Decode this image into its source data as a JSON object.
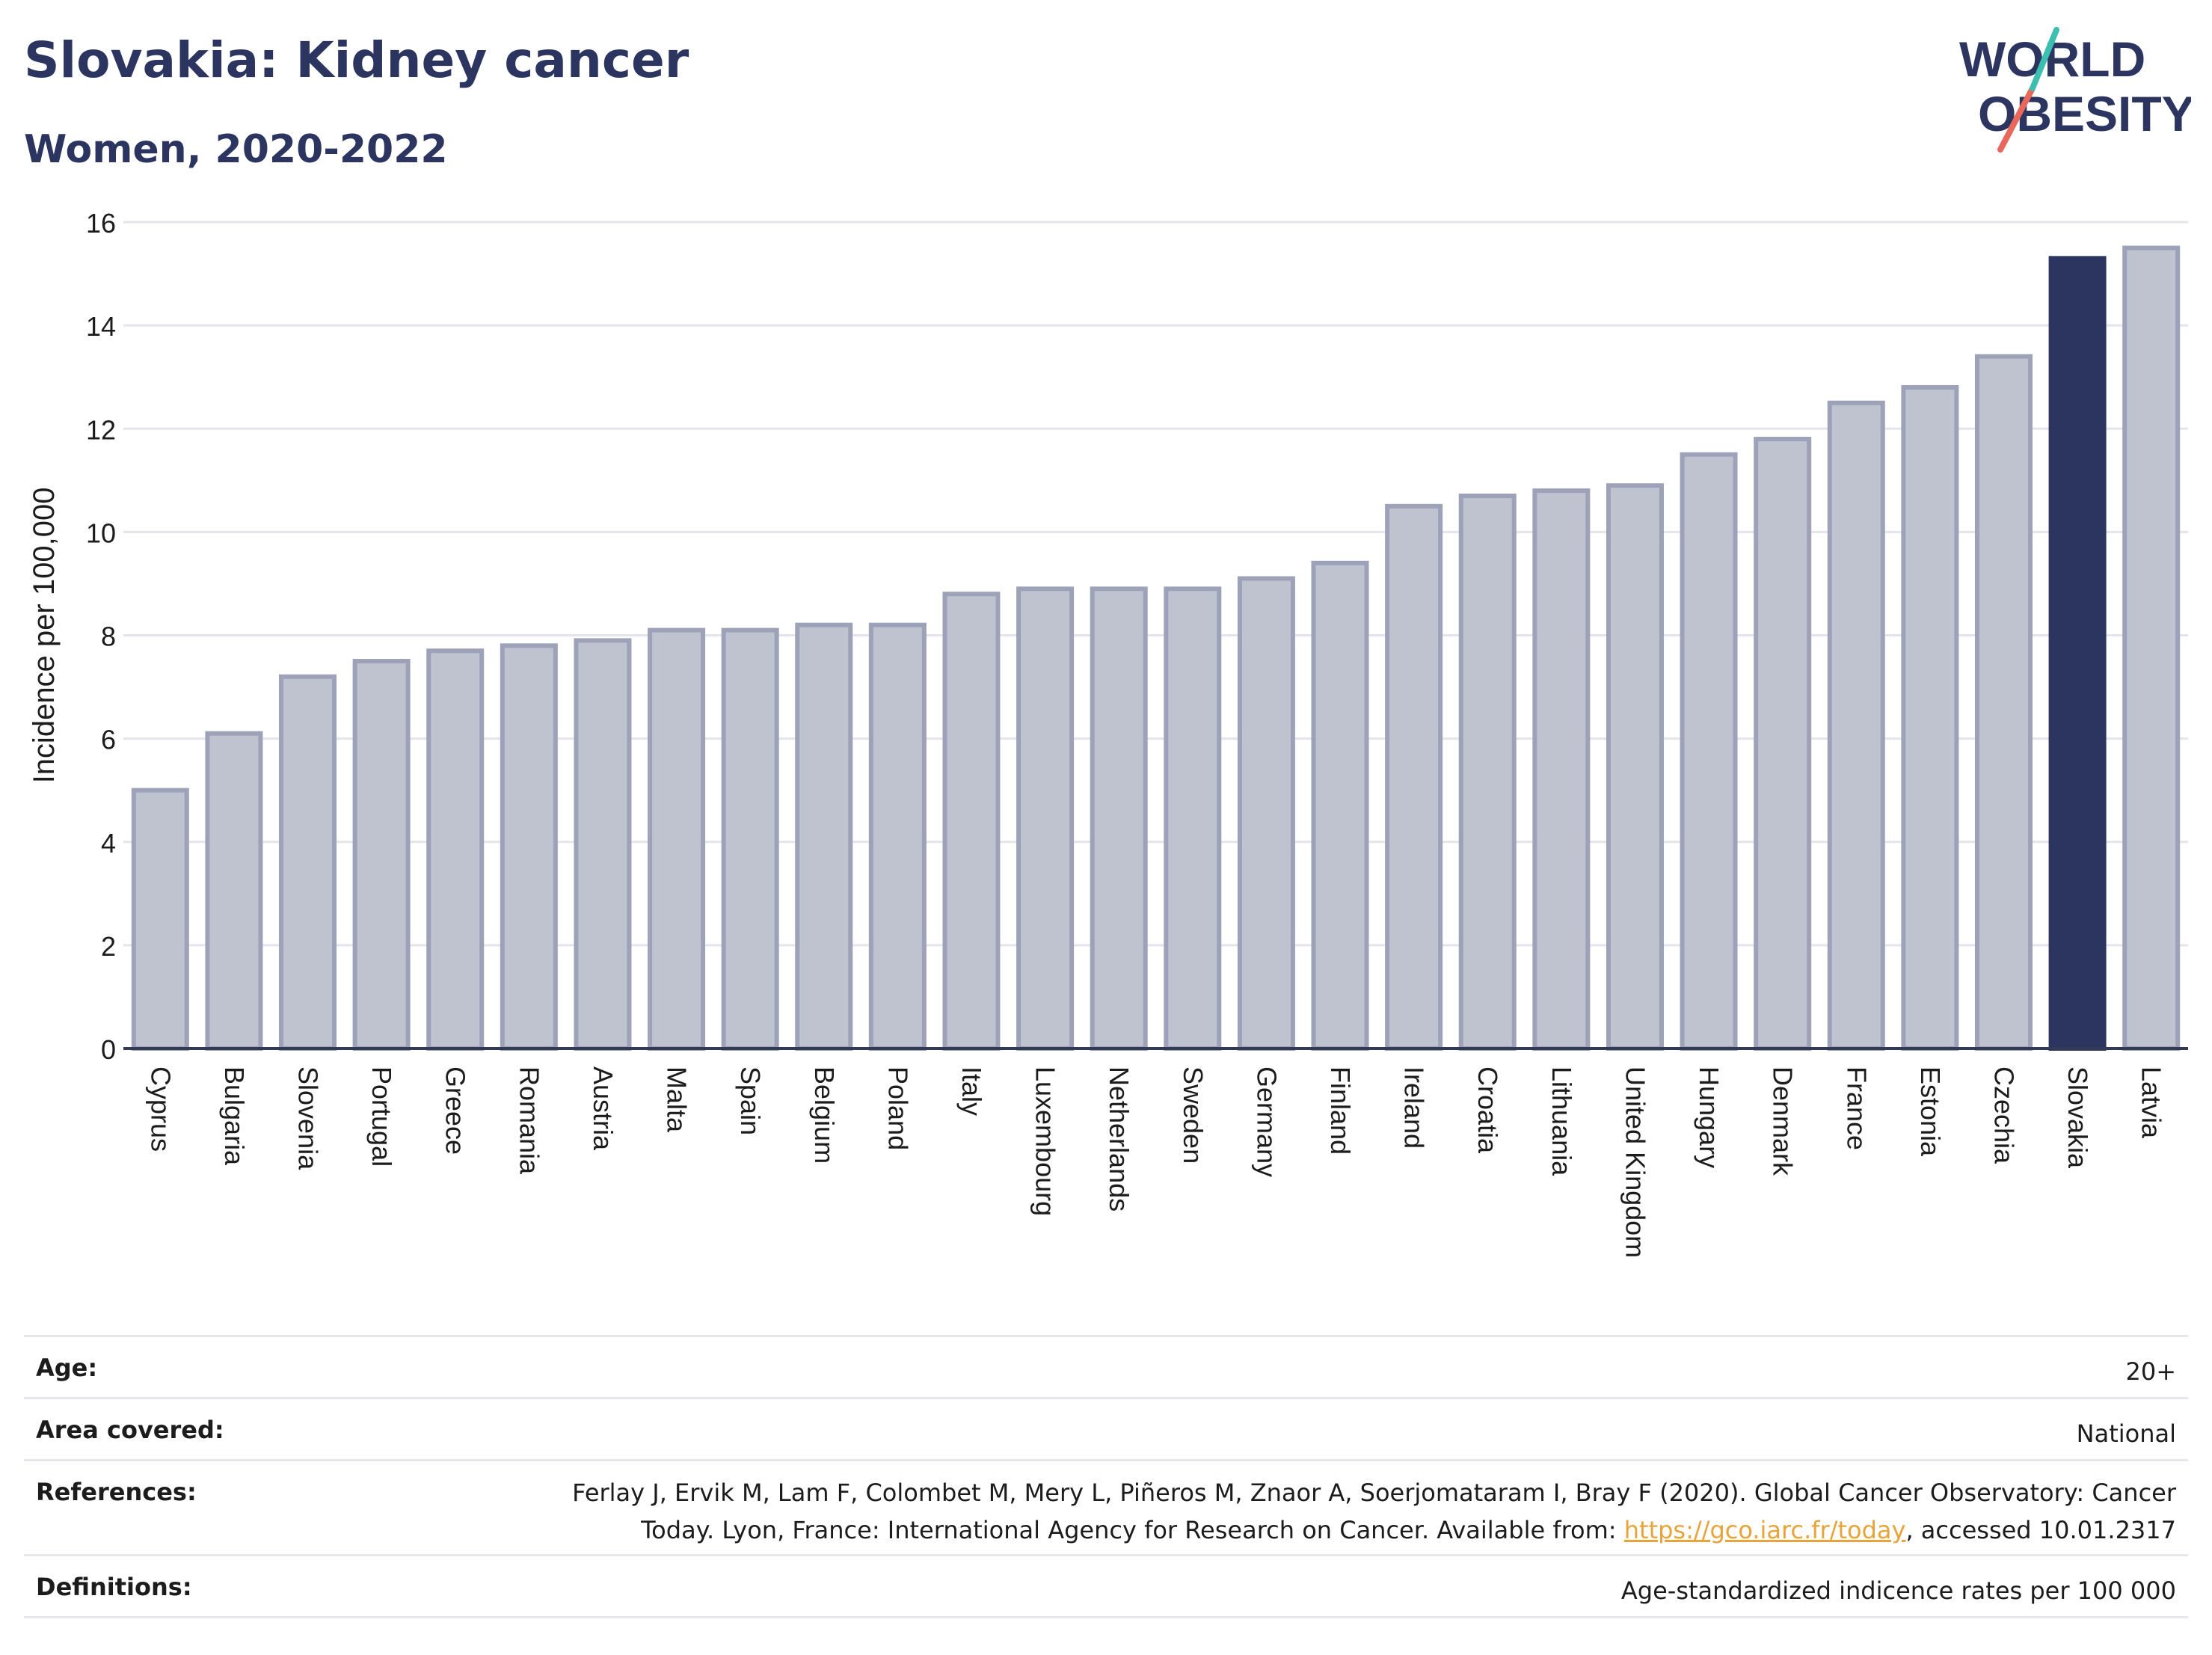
{
  "header": {
    "title": "Slovakia: Kidney cancer",
    "subtitle": "Women, 2020-2022",
    "logo_line1": "WORLD",
    "logo_line2": "OBESITY"
  },
  "chart_data": {
    "type": "bar",
    "ylabel": "Incidence per 100,000",
    "xlabel": "",
    "ylim": [
      0,
      16
    ],
    "yticks": [
      0,
      2,
      4,
      6,
      8,
      10,
      12,
      14,
      16
    ],
    "grid": true,
    "highlight": "Slovakia",
    "categories": [
      "Cyprus",
      "Bulgaria",
      "Slovenia",
      "Portugal",
      "Greece",
      "Romania",
      "Austria",
      "Malta",
      "Spain",
      "Belgium",
      "Poland",
      "Italy",
      "Luxembourg",
      "Netherlands",
      "Sweden",
      "Germany",
      "Finland",
      "Ireland",
      "Croatia",
      "Lithuania",
      "United Kingdom",
      "Hungary",
      "Denmark",
      "France",
      "Estonia",
      "Czechia",
      "Slovakia",
      "Latvia"
    ],
    "values": [
      5.0,
      6.1,
      7.2,
      7.5,
      7.7,
      7.8,
      7.9,
      8.1,
      8.1,
      8.2,
      8.2,
      8.8,
      8.9,
      8.9,
      8.9,
      9.1,
      9.4,
      10.5,
      10.7,
      10.8,
      10.9,
      11.5,
      11.8,
      12.5,
      12.8,
      13.4,
      15.3,
      15.5
    ]
  },
  "colors": {
    "highlight_bar": "#2b3560",
    "other_bar_fill": "#bfc2cf",
    "other_bar_stroke": "#9ea2b8",
    "title": "#2b3560",
    "link": "#e8a33a",
    "logo_teal": "#3cbfb0",
    "logo_coral": "#e8685c"
  },
  "meta": {
    "age_label": "Age:",
    "age_value": "20+",
    "area_label": "Area covered:",
    "area_value": "National",
    "references_label": "References:",
    "references_line1": "Ferlay J, Ervik M, Lam F, Colombet M, Mery L, Piñeros M, Znaor A, Soerjomataram I, Bray F (2020). Global Cancer Observatory: Cancer",
    "references_line2_pre": "Today. Lyon, France: International Agency for Research on Cancer. Available from: ",
    "references_link": "https://gco.iarc.fr/today",
    "references_line2_post": ", accessed 10.01.2317",
    "definitions_label": "Definitions:",
    "definitions_value": "Age-standardized indicence rates per 100 000"
  }
}
